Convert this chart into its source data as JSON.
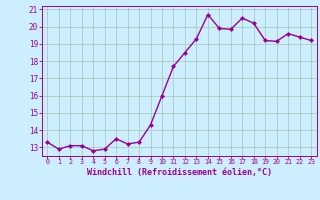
{
  "x": [
    0,
    1,
    2,
    3,
    4,
    5,
    6,
    7,
    8,
    9,
    10,
    11,
    12,
    13,
    14,
    15,
    16,
    17,
    18,
    19,
    20,
    21,
    22,
    23
  ],
  "y": [
    13.3,
    12.9,
    13.1,
    13.1,
    12.8,
    12.9,
    13.5,
    13.2,
    13.3,
    14.3,
    16.0,
    17.7,
    18.5,
    19.3,
    20.7,
    19.9,
    19.85,
    20.5,
    20.2,
    19.2,
    19.15,
    19.6,
    19.4,
    19.2
  ],
  "line_color": "#990099",
  "marker": "D",
  "marker_size": 2,
  "bg_color": "#cceeff",
  "grid_color": "#aaccbb",
  "xlabel": "Windchill (Refroidissement éolien,°C)",
  "xlabel_color": "#990099",
  "tick_color": "#990099",
  "xlim": [
    -0.5,
    23.5
  ],
  "ylim": [
    12.5,
    21.2
  ],
  "yticks": [
    13,
    14,
    15,
    16,
    17,
    18,
    19,
    20,
    21
  ],
  "xticks": [
    0,
    1,
    2,
    3,
    4,
    5,
    6,
    7,
    8,
    9,
    10,
    11,
    12,
    13,
    14,
    15,
    16,
    17,
    18,
    19,
    20,
    21,
    22,
    23
  ],
  "line_width": 1.0
}
